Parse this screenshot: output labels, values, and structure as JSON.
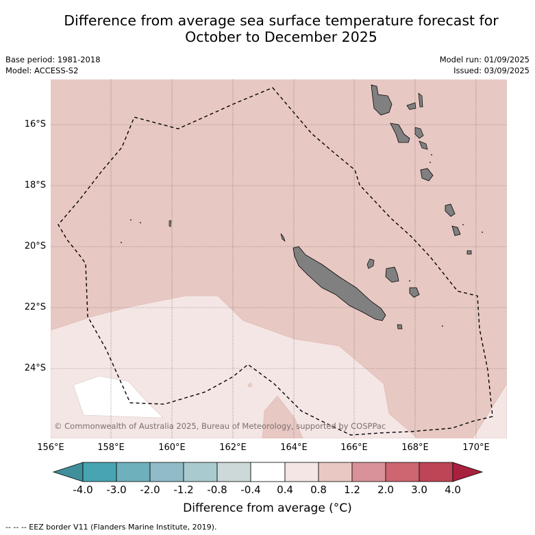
{
  "title_line1": "Difference from average sea surface temperature forecast for",
  "title_line2": "October to December 2025",
  "base_period": "Base period: 1981-2018",
  "model": "Model: ACCESS-S2",
  "model_run": "Model run: 01/09/2025",
  "issued": "Issued: 03/09/2025",
  "copyright": "© Commonwealth of Australia 2025, Bureau of Meteorology, supported by COSPPac",
  "lat_labels": [
    "16°S",
    "18°S",
    "20°S",
    "22°S",
    "24°S"
  ],
  "lon_labels": [
    "156°E",
    "158°E",
    "160°E",
    "162°E",
    "164°E",
    "166°E",
    "168°E",
    "170°E"
  ],
  "colorbar": {
    "ticks": [
      "-4.0",
      "-3.0",
      "-2.0",
      "-1.2",
      "-0.8",
      "-0.4",
      "0.4",
      "0.8",
      "1.2",
      "2.0",
      "3.0",
      "4.0"
    ],
    "colors": [
      "#418e9c",
      "#49a4b2",
      "#6fb0bd",
      "#8fbcc6",
      "#a9cace",
      "#cdd8d9",
      "#ffffff",
      "#f4e6e4",
      "#e9c8c3",
      "#d99299",
      "#cd6671",
      "#bd4656",
      "#a8213f"
    ],
    "label": "Difference from average (°C)"
  },
  "legend_footer": "--  --  -- EEZ border V11 (Flanders Marine Institute, 2019).",
  "map_colors": {
    "band_0_8_to_1_2": "#e8c8c3",
    "band_0_4_to_0_8": "#f4e6e4",
    "band_minus0_4_to_0_4": "#ffffff",
    "land": "#808080"
  }
}
